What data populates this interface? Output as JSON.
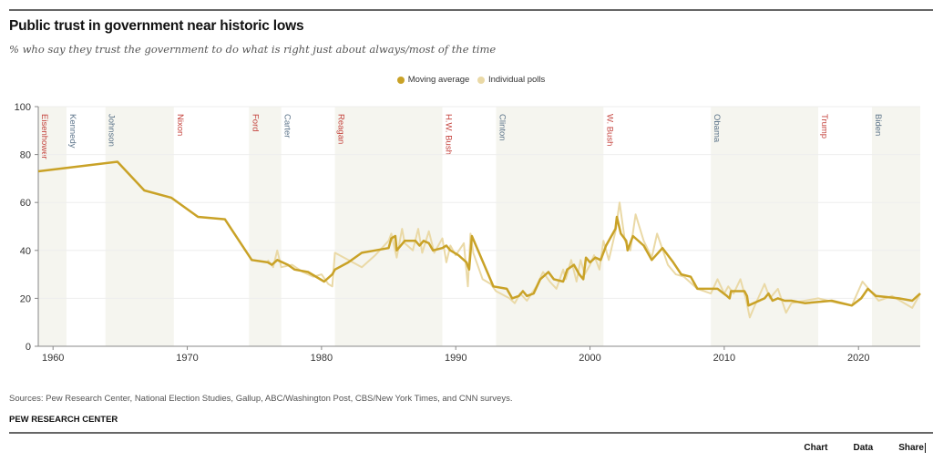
{
  "header": {
    "title": "Public trust in government near historic lows",
    "subtitle": "% who say they trust the government to do what is right just about always/most of the time"
  },
  "footer": {
    "sources": "Sources: Pew Research Center, National Election Studies, Gallup, ABC/Washington Post, CBS/New York Times, and CNN surveys.",
    "org": "PEW RESEARCH CENTER",
    "tabs": [
      "Chart",
      "Data",
      "Share"
    ]
  },
  "colors": {
    "moving_average": "#c9a227",
    "individual_polls": "#ead9a6",
    "republican": "#c4423c",
    "democrat": "#5b7389",
    "shade": "#f5f5ef"
  },
  "chart_data": {
    "type": "line",
    "title": "Public trust in government near historic lows",
    "xlabel": "",
    "ylabel": "",
    "xlim": [
      1958.9,
      2024.6
    ],
    "ylim": [
      0,
      100
    ],
    "xticks": [
      1960,
      1970,
      1980,
      1990,
      2000,
      2010,
      2020
    ],
    "yticks": [
      0,
      20,
      40,
      60,
      80,
      100
    ],
    "grid": true,
    "legend": {
      "position": "top-center",
      "entries": [
        "Moving average",
        "Individual polls"
      ]
    },
    "presidents": [
      {
        "name": "Eisenhower",
        "party": "R",
        "start": 1953,
        "end": 1961,
        "shaded": true
      },
      {
        "name": "Kennedy",
        "party": "D",
        "start": 1961,
        "end": 1963.9,
        "shaded": false
      },
      {
        "name": "Johnson",
        "party": "D",
        "start": 1963.9,
        "end": 1969,
        "shaded": true
      },
      {
        "name": "Nixon",
        "party": "R",
        "start": 1969,
        "end": 1974.6,
        "shaded": false
      },
      {
        "name": "Ford",
        "party": "R",
        "start": 1974.6,
        "end": 1977,
        "shaded": true
      },
      {
        "name": "Carter",
        "party": "D",
        "start": 1977,
        "end": 1981,
        "shaded": false
      },
      {
        "name": "Reagan",
        "party": "R",
        "start": 1981,
        "end": 1989,
        "shaded": true
      },
      {
        "name": "H.W. Bush",
        "party": "R",
        "start": 1989,
        "end": 1993,
        "shaded": false
      },
      {
        "name": "Clinton",
        "party": "D",
        "start": 1993,
        "end": 2001,
        "shaded": true
      },
      {
        "name": "W. Bush",
        "party": "R",
        "start": 2001,
        "end": 2009,
        "shaded": false
      },
      {
        "name": "Obama",
        "party": "D",
        "start": 2009,
        "end": 2017,
        "shaded": true
      },
      {
        "name": "Trump",
        "party": "R",
        "start": 2017,
        "end": 2021,
        "shaded": false
      },
      {
        "name": "Biden",
        "party": "D",
        "start": 2021,
        "end": 2025,
        "shaded": true
      }
    ],
    "series": [
      {
        "name": "Moving average",
        "x": [
          1958.9,
          1964.8,
          1966.8,
          1968.8,
          1970.8,
          1972.8,
          1974.8,
          1976,
          1976.3,
          1976.7,
          1977.5,
          1978,
          1979,
          1980.2,
          1980.8,
          1981,
          1982,
          1983,
          1984,
          1985,
          1985.2,
          1985.5,
          1985.6,
          1986.2,
          1987,
          1987.3,
          1987.6,
          1988,
          1988.3,
          1989,
          1989.3,
          1989.6,
          1990.2,
          1990.8,
          1991,
          1991.2,
          1992.8,
          1993.8,
          1994.2,
          1994.7,
          1995,
          1995.3,
          1995.8,
          1996.3,
          1996.9,
          1997.3,
          1998,
          1998.3,
          1998.8,
          1999.2,
          1999.5,
          1999.7,
          2000,
          2000.4,
          2000.8,
          2001.2,
          2001.6,
          2001.9,
          2002,
          2002.3,
          2002.7,
          2002.8,
          2003.2,
          2004,
          2004.6,
          2005.4,
          2006.2,
          2006.8,
          2007.5,
          2008,
          2009.5,
          2010.2,
          2010.4,
          2010.5,
          2011.5,
          2011.7,
          2011.8,
          2013,
          2013.3,
          2013.6,
          2014,
          2014.5,
          2015,
          2016,
          2018,
          2019.5,
          2020.2,
          2020.7,
          2021.3,
          2023,
          2024,
          2024.6
        ],
        "values": [
          73,
          77,
          65,
          62,
          54,
          53,
          36,
          35,
          34,
          36,
          34,
          32,
          31,
          27,
          30,
          32,
          35,
          39,
          40,
          41,
          45,
          46,
          40,
          44,
          44,
          42,
          44,
          43,
          40,
          41,
          42,
          40,
          38,
          35,
          32,
          46,
          25,
          24,
          20,
          21,
          23,
          21,
          22,
          28,
          31,
          28,
          27,
          32,
          34,
          30,
          28,
          37,
          35,
          37,
          36,
          42,
          46,
          49,
          54,
          47,
          44,
          40,
          46,
          42,
          36,
          41,
          35,
          30,
          29,
          24,
          24,
          21,
          20,
          23,
          23,
          21,
          17,
          20,
          22,
          19,
          20,
          19,
          19,
          18,
          19,
          17,
          20,
          24,
          21,
          20,
          19,
          22
        ]
      },
      {
        "name": "Individual polls",
        "x": [
          1976,
          1976.4,
          1976.7,
          1977,
          1977.8,
          1978.6,
          1979.4,
          1980,
          1980.5,
          1980.8,
          1981,
          1982,
          1983,
          1984,
          1985,
          1985.2,
          1985.6,
          1986,
          1986.2,
          1986.8,
          1987.2,
          1987.5,
          1988,
          1988.4,
          1989,
          1989.3,
          1989.6,
          1990,
          1990.6,
          1990.9,
          1991.1,
          1991.3,
          1992,
          1992.6,
          1993,
          1994,
          1994.4,
          1994.8,
          1995.3,
          1996,
          1996.5,
          1997,
          1997.5,
          1998,
          1998.2,
          1998.6,
          1999,
          1999.3,
          1999.6,
          2000,
          2000.3,
          2000.7,
          2001,
          2001.4,
          2001.9,
          2002.2,
          2002.6,
          2003,
          2003.4,
          2004,
          2004.6,
          2005,
          2005.8,
          2006.4,
          2007,
          2008,
          2009,
          2009.5,
          2010,
          2010.3,
          2010.7,
          2011.2,
          2011.6,
          2011.9,
          2012.2,
          2013,
          2013.4,
          2014,
          2014.6,
          2015,
          2016,
          2017,
          2018.5,
          2019.5,
          2020.3,
          2021.5,
          2022.5,
          2024,
          2024.6
        ],
        "values": [
          36,
          33,
          40,
          33,
          34,
          31,
          29,
          30,
          26,
          25,
          39,
          36,
          33,
          38,
          44,
          47,
          37,
          49,
          43,
          40,
          49,
          39,
          48,
          39,
          45,
          35,
          42,
          38,
          43,
          25,
          47,
          39,
          28,
          26,
          23,
          20,
          18,
          22,
          19,
          25,
          31,
          27,
          24,
          32,
          28,
          36,
          27,
          36,
          30,
          34,
          38,
          32,
          44,
          36,
          48,
          60,
          44,
          40,
          55,
          44,
          37,
          47,
          34,
          30,
          29,
          24,
          22,
          28,
          22,
          25,
          22,
          28,
          20,
          12,
          16,
          26,
          20,
          24,
          14,
          18,
          19,
          20,
          18,
          17,
          27,
          19,
          21,
          16,
          22
        ]
      }
    ]
  }
}
